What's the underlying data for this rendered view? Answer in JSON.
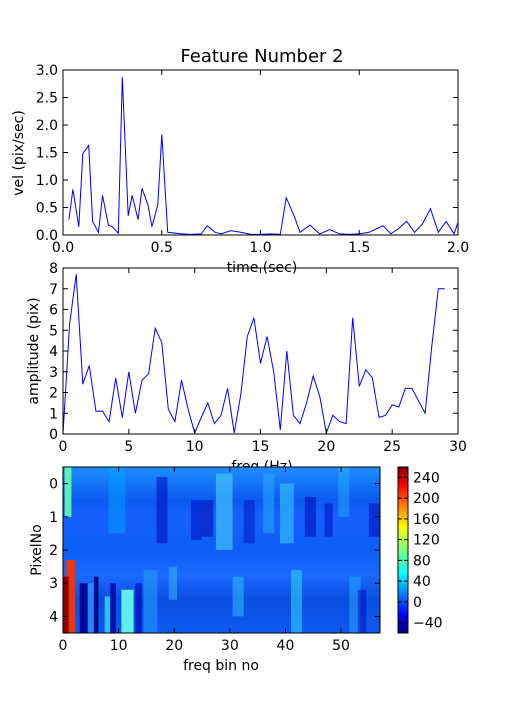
{
  "chart_data": [
    {
      "type": "line",
      "title": "Feature Number 2",
      "xlabel": "time (sec)",
      "ylabel": "vel (pix/sec)",
      "xlim": [
        0,
        2.0
      ],
      "ylim": [
        0,
        3.0
      ],
      "xticks": [
        "0.0",
        "0.5",
        "1.0",
        "1.5",
        "2.0"
      ],
      "yticks": [
        "0.0",
        "0.5",
        "1.0",
        "1.5",
        "2.0",
        "2.5",
        "3.0"
      ],
      "series_color": "#0000ff",
      "x": [
        0.03,
        0.05,
        0.08,
        0.1,
        0.13,
        0.15,
        0.18,
        0.2,
        0.23,
        0.25,
        0.28,
        0.3,
        0.33,
        0.35,
        0.38,
        0.4,
        0.43,
        0.45,
        0.48,
        0.5,
        0.53,
        0.6,
        0.65,
        0.7,
        0.73,
        0.77,
        0.8,
        0.85,
        0.9,
        0.95,
        1.0,
        1.05,
        1.1,
        1.13,
        1.17,
        1.2,
        1.25,
        1.3,
        1.35,
        1.4,
        1.45,
        1.5,
        1.55,
        1.58,
        1.62,
        1.66,
        1.7,
        1.74,
        1.78,
        1.82,
        1.86,
        1.9,
        1.94,
        1.98,
        2.0
      ],
      "y": [
        0.28,
        0.83,
        0.15,
        1.48,
        1.63,
        0.25,
        0.05,
        0.72,
        0.18,
        0.15,
        0.03,
        2.87,
        0.35,
        0.72,
        0.28,
        0.85,
        0.55,
        0.15,
        0.55,
        1.83,
        0.05,
        0.02,
        0.01,
        0.02,
        0.17,
        0.05,
        0.02,
        0.08,
        0.05,
        0.01,
        0.01,
        0.02,
        0.01,
        0.68,
        0.35,
        0.05,
        0.18,
        0.02,
        0.1,
        0.02,
        0.01,
        0.02,
        0.05,
        0.1,
        0.17,
        0.02,
        0.12,
        0.25,
        0.05,
        0.2,
        0.48,
        0.05,
        0.25,
        0.02,
        0.23
      ]
    },
    {
      "type": "line",
      "xlabel": "freq (Hz)",
      "ylabel": "amplitude (pix)",
      "xlim": [
        0,
        30
      ],
      "ylim": [
        0,
        8
      ],
      "xticks": [
        "0",
        "5",
        "10",
        "15",
        "20",
        "25",
        "30"
      ],
      "yticks": [
        "0",
        "1",
        "2",
        "3",
        "4",
        "5",
        "6",
        "7",
        "8"
      ],
      "series_color": "#0000ff",
      "x": [
        0,
        0.5,
        1,
        1.5,
        2,
        2.5,
        3,
        3.5,
        4,
        4.5,
        5,
        5.5,
        6,
        6.5,
        7,
        7.5,
        8,
        8.5,
        9,
        9.5,
        10,
        10.5,
        11,
        11.5,
        12,
        12.5,
        13,
        13.5,
        14,
        14.5,
        15,
        15.5,
        16,
        16.5,
        17,
        17.5,
        18,
        18.5,
        19,
        19.5,
        20,
        20.5,
        21,
        21.5,
        22,
        22.5,
        23,
        23.5,
        24,
        24.5,
        25,
        25.5,
        26,
        26.5,
        27,
        27.5,
        28,
        28.5,
        29
      ],
      "y": [
        0,
        5.3,
        7.7,
        2.4,
        3.3,
        1.1,
        1.1,
        0.6,
        2.7,
        0.8,
        3.0,
        1.0,
        2.6,
        2.9,
        5.1,
        4.4,
        1.2,
        0.6,
        2.6,
        1.2,
        0.05,
        0.8,
        1.5,
        0.5,
        0.9,
        2.2,
        0.05,
        1.9,
        4.7,
        5.6,
        3.4,
        4.7,
        3.0,
        0.2,
        4.0,
        0.9,
        0.5,
        1.5,
        2.8,
        1.8,
        0.05,
        0.9,
        0.6,
        0.5,
        5.6,
        2.3,
        3.1,
        2.7,
        0.8,
        0.9,
        1.4,
        1.3,
        2.2,
        2.2,
        1.6,
        1.0,
        4.2,
        7.0,
        7.0
      ]
    },
    {
      "type": "heatmap",
      "xlabel": "freq bin no",
      "ylabel": "PixelNo",
      "xlim": [
        0,
        57
      ],
      "ylim": [
        -0.5,
        4.5
      ],
      "xticks": [
        "0",
        "10",
        "20",
        "30",
        "40",
        "50"
      ],
      "yticks": [
        "0",
        "1",
        "2",
        "3",
        "4"
      ],
      "colorbar_ticks": [
        "240",
        "200",
        "160",
        "120",
        "80",
        "40",
        "0",
        "−40"
      ],
      "colorbar_range": [
        -60,
        260
      ],
      "colormap": "jet"
    }
  ]
}
